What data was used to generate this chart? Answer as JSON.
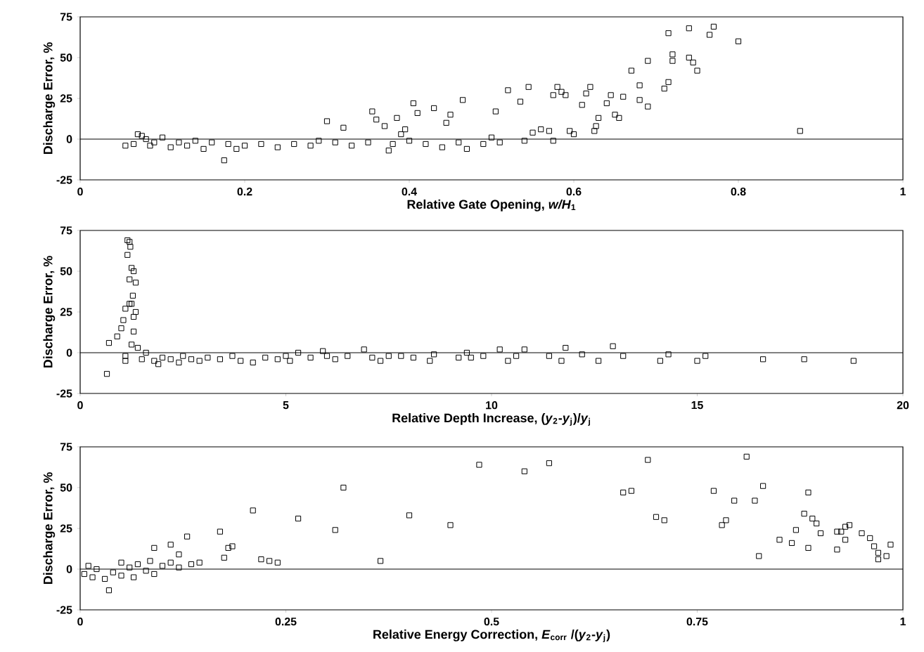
{
  "chart_data": [
    {
      "type": "scatter",
      "xlabel": "Relative Gate Opening,   *w/H*$_{1}$",
      "ylabel": "Discharge Error, %",
      "xlim": [
        0,
        1
      ],
      "ylim": [
        -25,
        75
      ],
      "xticks": [
        0,
        0.2,
        0.4,
        0.6,
        0.8,
        1
      ],
      "yticks": [
        -25,
        0,
        25,
        50,
        75
      ],
      "marker": "square",
      "ref_lines": [
        {
          "axis": "y",
          "value": 0,
          "color": "#000000"
        }
      ],
      "series": [
        {
          "color": "#000000",
          "x": [
            0.055,
            0.065,
            0.07,
            0.075,
            0.08,
            0.085,
            0.09,
            0.1,
            0.11,
            0.12,
            0.13,
            0.14,
            0.15,
            0.16,
            0.175,
            0.18,
            0.19,
            0.2,
            0.22,
            0.24,
            0.26,
            0.28,
            0.29,
            0.3,
            0.31,
            0.32,
            0.33,
            0.35,
            0.355,
            0.36,
            0.37,
            0.375,
            0.38,
            0.385,
            0.39,
            0.395,
            0.4,
            0.405,
            0.41,
            0.42,
            0.43,
            0.44,
            0.445,
            0.45,
            0.46,
            0.465,
            0.47,
            0.49,
            0.5,
            0.505,
            0.51,
            0.52,
            0.535,
            0.54,
            0.545,
            0.55,
            0.56,
            0.57,
            0.575,
            0.575,
            0.58,
            0.585,
            0.59,
            0.595,
            0.6,
            0.61,
            0.615,
            0.62,
            0.625,
            0.627,
            0.63,
            0.64,
            0.645,
            0.65,
            0.655,
            0.66,
            0.67,
            0.68,
            0.68,
            0.69,
            0.69,
            0.71,
            0.715,
            0.715,
            0.72,
            0.72,
            0.74,
            0.74,
            0.745,
            0.75,
            0.765,
            0.77,
            0.8,
            0.875
          ],
          "values": [
            -4,
            -3,
            3,
            2,
            0,
            -4,
            -2,
            1,
            -5,
            -2,
            -4,
            -1,
            -6,
            -2,
            -13,
            -3,
            -6,
            -4,
            -3,
            -5,
            -3,
            -4,
            -1,
            11,
            -2,
            7,
            -4,
            -2,
            17,
            12,
            8,
            -7,
            -3,
            13,
            3,
            6,
            -1,
            22,
            16,
            -3,
            19,
            -5,
            10,
            15,
            -2,
            24,
            -6,
            -3,
            1,
            17,
            -2,
            30,
            23,
            -1,
            32,
            4,
            6,
            5,
            -1,
            27,
            32,
            29,
            27,
            5,
            3,
            21,
            28,
            32,
            5,
            8,
            13,
            22,
            27,
            15,
            13,
            26,
            42,
            33,
            24,
            48,
            20,
            31,
            65,
            35,
            52,
            48,
            68,
            50,
            47,
            42,
            64,
            69,
            60,
            5
          ]
        }
      ]
    },
    {
      "type": "scatter",
      "xlabel": "Relative Depth Increase, (*y*$_{2}$-*y*$_{j}$)/*y*$_{j}$",
      "ylabel": "Discharge Error, %",
      "xlim": [
        0,
        20
      ],
      "ylim": [
        -25,
        75
      ],
      "xticks": [
        0,
        5,
        10,
        15,
        20
      ],
      "yticks": [
        -25,
        0,
        25,
        50,
        75
      ],
      "marker": "square",
      "ref_lines": [
        {
          "axis": "y",
          "value": 0,
          "color": "#000000"
        }
      ],
      "series": [
        {
          "color": "#000000",
          "x": [
            0.7,
            0.65,
            0.9,
            1.0,
            1.05,
            1.1,
            1.1,
            1.1,
            1.15,
            1.15,
            1.2,
            1.2,
            1.22,
            1.25,
            1.25,
            1.28,
            1.3,
            1.3,
            1.3,
            1.35,
            1.35,
            1.2,
            1.25,
            1.4,
            1.5,
            1.6,
            1.8,
            1.9,
            2.0,
            2.2,
            2.4,
            2.5,
            2.7,
            2.9,
            3.1,
            3.4,
            3.7,
            3.9,
            4.2,
            4.5,
            4.8,
            5.0,
            5.1,
            5.3,
            5.6,
            5.9,
            6.0,
            6.2,
            6.5,
            6.9,
            7.1,
            7.3,
            7.5,
            7.8,
            8.1,
            8.5,
            8.6,
            9.2,
            9.4,
            9.5,
            9.8,
            10.2,
            10.4,
            10.6,
            10.8,
            11.4,
            11.7,
            11.8,
            12.2,
            12.6,
            12.95,
            13.2,
            14.1,
            14.3,
            15.0,
            15.2,
            16.6,
            17.6,
            18.8
          ],
          "values": [
            6,
            -13,
            10,
            15,
            20,
            -5,
            -2,
            27,
            60,
            69,
            68,
            45,
            65,
            52,
            30,
            35,
            50,
            22,
            13,
            43,
            25,
            30,
            5,
            3,
            -4,
            0,
            -5,
            -7,
            -3,
            -4,
            -6,
            -2,
            -4,
            -5,
            -3,
            -4,
            -2,
            -5,
            -6,
            -3,
            -4,
            -2,
            -5,
            0,
            -3,
            1,
            -2,
            -4,
            -2,
            2,
            -3,
            -5,
            -2,
            -2,
            -3,
            -5,
            -1,
            -3,
            0,
            -3,
            -2,
            2,
            -5,
            -2,
            2,
            -2,
            -5,
            3,
            -1,
            -5,
            4,
            -2,
            -5,
            -1,
            -5,
            -2,
            -4,
            -4,
            -5
          ]
        }
      ]
    },
    {
      "type": "scatter",
      "xlabel": "Relative Energy Correction, *E*$_{corr}$ /(*y*$_{2}$-*y*$_{j}$)",
      "ylabel": "Discharge Error, %",
      "xlim": [
        0,
        1
      ],
      "ylim": [
        -25,
        75
      ],
      "xticks": [
        0,
        0.25,
        0.5,
        0.75,
        1
      ],
      "yticks": [
        -25,
        0,
        25,
        50,
        75
      ],
      "marker": "square",
      "ref_lines": [
        {
          "axis": "y",
          "value": 0,
          "color": "#000000"
        }
      ],
      "series": [
        {
          "color": "#000000",
          "x": [
            0.005,
            0.01,
            0.015,
            0.02,
            0.03,
            0.035,
            0.04,
            0.05,
            0.05,
            0.06,
            0.065,
            0.07,
            0.08,
            0.085,
            0.09,
            0.09,
            0.1,
            0.11,
            0.11,
            0.12,
            0.12,
            0.13,
            0.135,
            0.145,
            0.17,
            0.175,
            0.18,
            0.185,
            0.21,
            0.22,
            0.23,
            0.24,
            0.265,
            0.31,
            0.32,
            0.365,
            0.4,
            0.45,
            0.485,
            0.54,
            0.57,
            0.66,
            0.67,
            0.69,
            0.7,
            0.71,
            0.77,
            0.78,
            0.785,
            0.795,
            0.81,
            0.82,
            0.825,
            0.83,
            0.85,
            0.865,
            0.87,
            0.88,
            0.885,
            0.885,
            0.89,
            0.895,
            0.9,
            0.92,
            0.92,
            0.925,
            0.93,
            0.93,
            0.935,
            0.95,
            0.96,
            0.965,
            0.97,
            0.97,
            0.98,
            0.985
          ],
          "values": [
            -3,
            2,
            -5,
            0,
            -6,
            -13,
            -2,
            -4,
            4,
            1,
            -5,
            3,
            -1,
            5,
            -3,
            13,
            2,
            15,
            4,
            9,
            1,
            20,
            3,
            4,
            23,
            7,
            13,
            14,
            36,
            6,
            5,
            4,
            31,
            24,
            50,
            5,
            33,
            27,
            64,
            60,
            65,
            47,
            48,
            67,
            32,
            30,
            48,
            27,
            30,
            42,
            69,
            42,
            8,
            51,
            18,
            16,
            24,
            34,
            13,
            47,
            31,
            28,
            22,
            12,
            23,
            23,
            18,
            26,
            27,
            22,
            19,
            14,
            6,
            10,
            8,
            15
          ]
        }
      ]
    }
  ]
}
